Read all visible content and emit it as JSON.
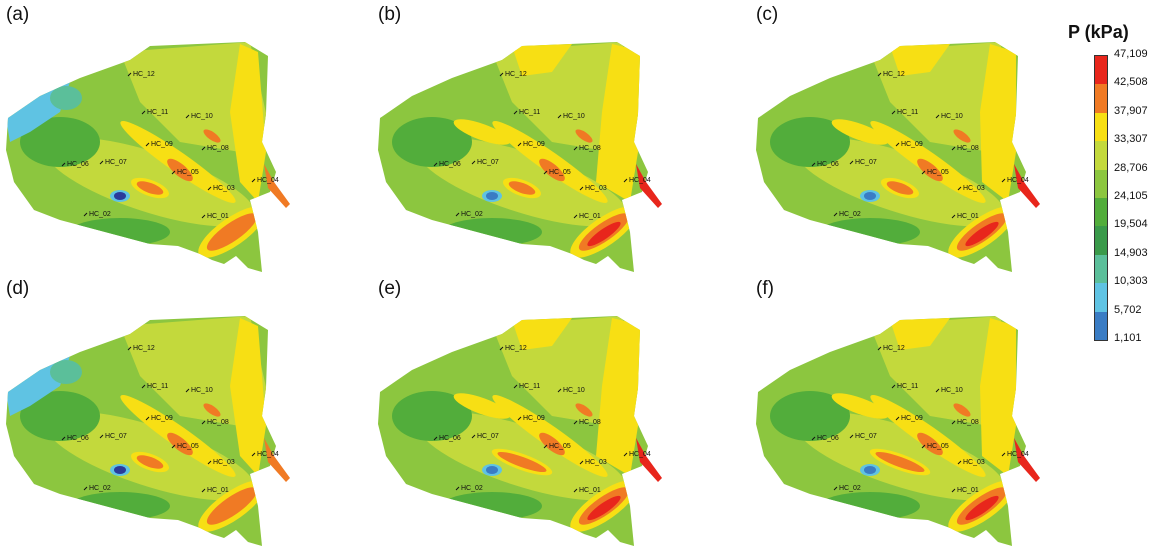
{
  "legend": {
    "title": "P (kPa)",
    "ticks": [
      "47,109",
      "42,508",
      "37,907",
      "33,307",
      "28,706",
      "24,105",
      "19,504",
      "14,903",
      "10,303",
      "5,702",
      "1,101"
    ],
    "colors": [
      "#e8261c",
      "#f07a24",
      "#f7df14",
      "#c3d93c",
      "#8cc63f",
      "#52ad3b",
      "#3a9a4a",
      "#5bbf9a",
      "#5fc3e3",
      "#3a7cc4",
      "#2a3b9a"
    ]
  },
  "panels": [
    {
      "label": "(a)"
    },
    {
      "label": "(b)"
    },
    {
      "label": "(c)"
    },
    {
      "label": "(d)"
    },
    {
      "label": "(e)"
    },
    {
      "label": "(f)"
    }
  ],
  "wells": [
    "HC_12",
    "HC_11",
    "HC_10",
    "HC_09",
    "HC_08",
    "HC_07",
    "HC_06",
    "HC_05",
    "HC_04",
    "HC_03",
    "HC_02",
    "HC_01"
  ]
}
